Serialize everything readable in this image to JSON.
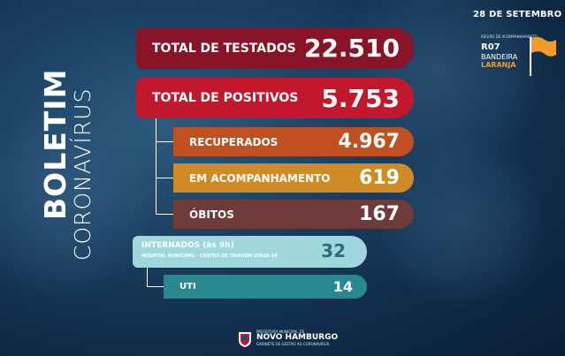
{
  "header": {
    "date": "28 DE SETEMBRO"
  },
  "region_logo": {
    "small_text": "REGIÃO DE ACOMPANHAMENTO",
    "region": "R07",
    "flag_line1": "BANDEIRA",
    "flag_line2": "LARANJA",
    "flag_color": "#f39a2c"
  },
  "title": {
    "line1": "BOLETIM",
    "line2": "CORONAVÍRUS"
  },
  "stats": {
    "testados": {
      "label": "TOTAL DE TESTADOS",
      "value": "22.510"
    },
    "positivos": {
      "label": "TOTAL DE POSITIVOS",
      "value": "5.753"
    },
    "recuperados": {
      "label": "RECUPERADOS",
      "value": "4.967"
    },
    "acompanhamento": {
      "label": "EM ACOMPANHAMENTO",
      "value": "619"
    },
    "obitos": {
      "label": "ÓBITOS",
      "value": "167"
    },
    "internados": {
      "label": "INTERNADOS (às 9h)",
      "sub": "HOSPITAL MUNICIPAL - CENTRO DE TRIAGEM COVID-19",
      "value": "32"
    },
    "uti": {
      "label": "UTI",
      "value": "14"
    }
  },
  "footer": {
    "line1": "PREFEITURA MUNICIPAL DE",
    "line2": "NOVO HAMBURGO",
    "line3": "GABINETE DE GESTÃO AO CORONAVÍRUS"
  },
  "colors": {
    "testados": "#8a1427",
    "positivos": "#c2172d",
    "recuperados": "#c0501f",
    "acompanhamento": "#d08a26",
    "obitos": "#6e3a3a",
    "internados": "#9fd7dc",
    "uti": "#27898f"
  }
}
